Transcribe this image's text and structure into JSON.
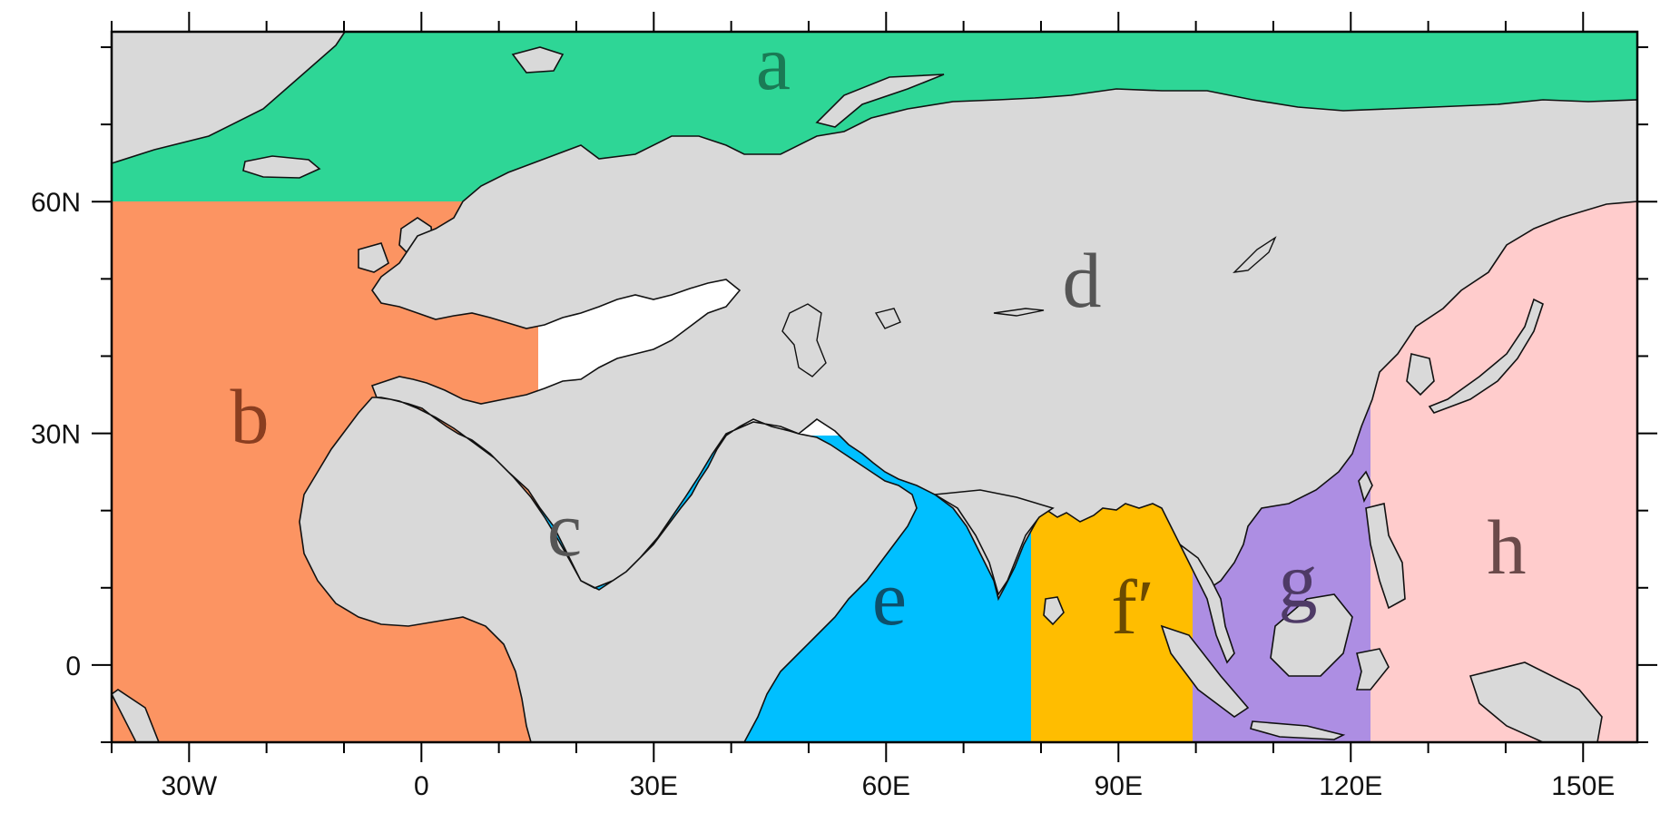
{
  "map": {
    "x_ticks": [
      {
        "lon": -30,
        "label": "30W"
      },
      {
        "lon": 0,
        "label": "0"
      },
      {
        "lon": 30,
        "label": "30E"
      },
      {
        "lon": 60,
        "label": "60E"
      },
      {
        "lon": 90,
        "label": "90E"
      },
      {
        "lon": 120,
        "label": "120E"
      },
      {
        "lon": 150,
        "label": "150E"
      }
    ],
    "y_ticks": [
      {
        "lat": 60,
        "label": "60N"
      },
      {
        "lat": 30,
        "label": "30N"
      },
      {
        "lat": 0,
        "label": "0"
      }
    ],
    "lon_range": [
      -40,
      157
    ],
    "lat_range": [
      -10,
      82
    ],
    "regions": [
      {
        "id": "a",
        "label": "a",
        "fill": "#2ed696",
        "text_color": "#1a7a55"
      },
      {
        "id": "b",
        "label": "b",
        "fill": "#fc9462",
        "text_color": "#8a3e20"
      },
      {
        "id": "c",
        "label": "c",
        "fill": "#d9d9d9",
        "text_color": "#555555"
      },
      {
        "id": "d",
        "label": "d",
        "fill": "#d9d9d9",
        "text_color": "#555555"
      },
      {
        "id": "e",
        "label": "e",
        "fill": "#00bfff",
        "text_color": "#0d4f6b"
      },
      {
        "id": "f",
        "label": "f′",
        "fill": "#ffbd00",
        "text_color": "#6b4a00"
      },
      {
        "id": "g",
        "label": "g",
        "fill": "#ad8ee3",
        "text_color": "#4e3a66"
      },
      {
        "id": "h",
        "label": "h",
        "fill": "#ffcccc",
        "text_color": "#6b4a4a"
      }
    ],
    "land_color": "#d9d9d9"
  }
}
